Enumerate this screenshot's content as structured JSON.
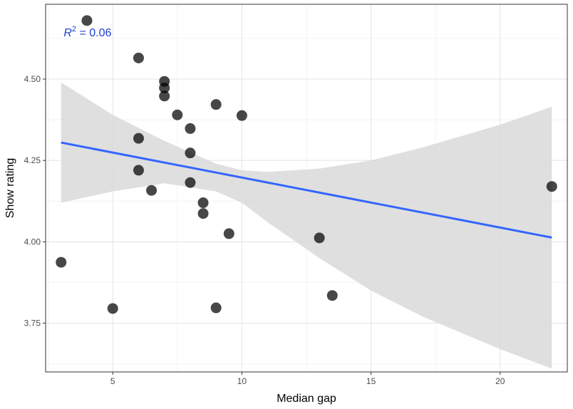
{
  "chart_data": {
    "type": "scatter",
    "xlabel": "Median gap",
    "ylabel": "Show rating",
    "xlim": [
      2.4,
      22.6
    ],
    "ylim": [
      3.6,
      4.73
    ],
    "x_ticks": [
      5,
      10,
      15,
      20
    ],
    "x_tick_labels": [
      "5",
      "10",
      "15",
      "20"
    ],
    "y_ticks": [
      3.75,
      4.0,
      4.25,
      4.5
    ],
    "y_tick_labels": [
      "3.75",
      "4.00",
      "4.25",
      "4.50"
    ],
    "grid": true,
    "points": [
      {
        "x": 3,
        "y": 3.937
      },
      {
        "x": 4,
        "y": 4.68
      },
      {
        "x": 5,
        "y": 3.795
      },
      {
        "x": 6,
        "y": 4.565
      },
      {
        "x": 6,
        "y": 4.318
      },
      {
        "x": 6,
        "y": 4.22
      },
      {
        "x": 6.5,
        "y": 4.158
      },
      {
        "x": 7,
        "y": 4.493
      },
      {
        "x": 7,
        "y": 4.473
      },
      {
        "x": 7,
        "y": 4.448
      },
      {
        "x": 7.5,
        "y": 4.39
      },
      {
        "x": 8,
        "y": 4.348
      },
      {
        "x": 8,
        "y": 4.273
      },
      {
        "x": 8,
        "y": 4.182
      },
      {
        "x": 8.5,
        "y": 4.12
      },
      {
        "x": 8.5,
        "y": 4.087
      },
      {
        "x": 9,
        "y": 4.422
      },
      {
        "x": 9,
        "y": 3.797
      },
      {
        "x": 9.5,
        "y": 4.025
      },
      {
        "x": 10,
        "y": 4.388
      },
      {
        "x": 13,
        "y": 4.012
      },
      {
        "x": 13.5,
        "y": 3.835
      },
      {
        "x": 22,
        "y": 4.17
      }
    ],
    "trend_line": {
      "x": [
        3,
        22
      ],
      "y": [
        4.305,
        4.013
      ]
    },
    "confidence_band": {
      "x": [
        3,
        5,
        7,
        9,
        10,
        11,
        13,
        15,
        17,
        20,
        22
      ],
      "lower": [
        4.12,
        4.155,
        4.18,
        4.155,
        4.12,
        4.06,
        3.95,
        3.85,
        3.77,
        3.67,
        3.61
      ],
      "upper": [
        4.49,
        4.39,
        4.31,
        4.24,
        4.22,
        4.215,
        4.225,
        4.25,
        4.29,
        4.36,
        4.415
      ]
    },
    "annotation": {
      "prefix": "R",
      "superscript": "2",
      "text": " = 0.06",
      "x": 3.1,
      "y": 4.645
    },
    "colors": {
      "trend": "#3366ff",
      "band": "#d9d9d9",
      "points": "#000000",
      "annotation": "#1f3fd6",
      "grid": "#ebebeb"
    }
  }
}
